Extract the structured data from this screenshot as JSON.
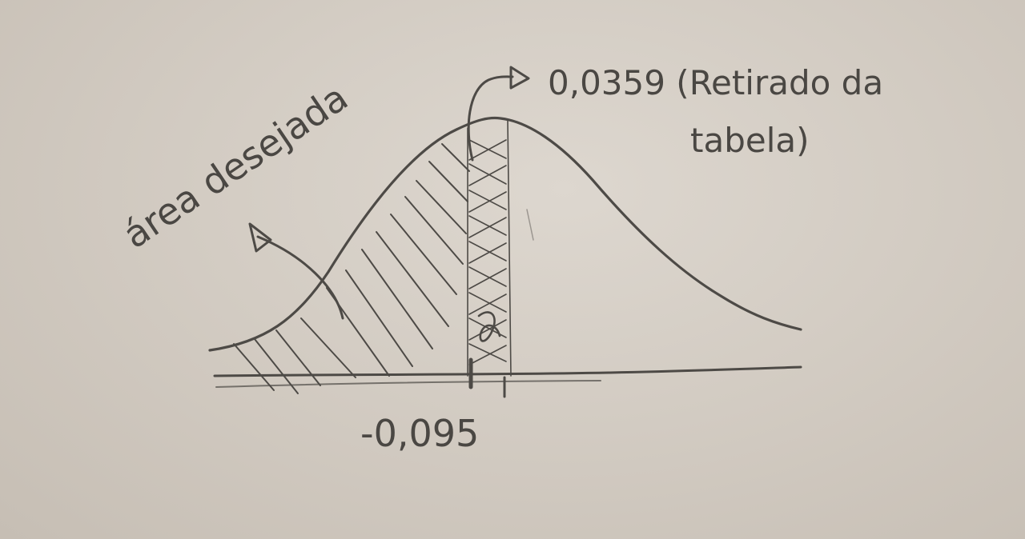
{
  "annotations": {
    "desired_area": "área desejada",
    "table_value": "0,0359 (Retirado da tabela)",
    "table_value_line1": "0,0359 (Retirado da",
    "table_value_line2": "tabela)",
    "z_value": "-0,095"
  },
  "colors": {
    "paper": "#d6d0c8",
    "pencil": "#4d4a46"
  }
}
